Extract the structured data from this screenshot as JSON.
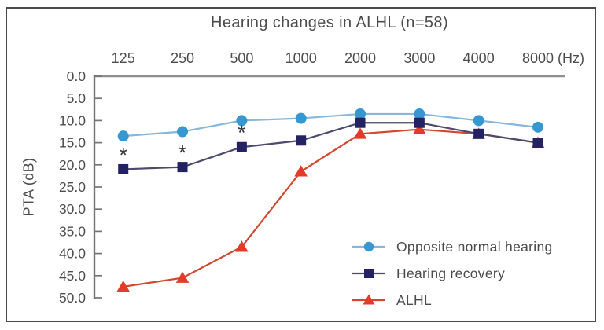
{
  "figure": {
    "title": "Hearing changes in ALHL (n=58)"
  },
  "chart_data": {
    "type": "line",
    "title": "Hearing changes in ALHL (n=58)",
    "ylabel": "PTA (dB)",
    "x_unit_label": "(Hz)",
    "categories": [
      "125",
      "250",
      "500",
      "1000",
      "2000",
      "3000",
      "4000",
      "8000"
    ],
    "y_ticks": [
      "0.0",
      "5.0",
      "10.0",
      "15.0",
      "20.0",
      "25.0",
      "30.0",
      "35.0",
      "40.0",
      "45.0",
      "50.0"
    ],
    "ylim": [
      0,
      50
    ],
    "y_axis_inverted": true,
    "grid": false,
    "legend_position": "inside-bottom-right",
    "series": [
      {
        "name": "Opposite normal hearing",
        "marker": "circle",
        "marker_color": "#3697d1",
        "line_color": "#86b7dc",
        "values": [
          13.5,
          12.5,
          10.0,
          9.5,
          8.5,
          8.5,
          10.0,
          11.5
        ]
      },
      {
        "name": "Hearing recovery",
        "marker": "square",
        "marker_color": "#232262",
        "line_color": "#4c4a6e",
        "values": [
          21.0,
          20.5,
          16.0,
          14.5,
          10.5,
          10.5,
          13.0,
          15.0
        ]
      },
      {
        "name": "ALHL",
        "marker": "triangle",
        "marker_color": "#e23b2a",
        "line_color": "#d4482f",
        "values": [
          47.5,
          45.5,
          38.5,
          21.5,
          13.0,
          12.0,
          13.0,
          15.0
        ]
      }
    ],
    "significance_markers": {
      "symbol": "*",
      "series": "Hearing recovery",
      "categories": [
        "125",
        "250",
        "500"
      ]
    }
  },
  "colors": {
    "frame_border": "#4a4a4a",
    "top_axis": "#8f8f8f",
    "y_axis": "#757575",
    "text": "#4c4c4c",
    "asterisk": "#3a3a3a"
  }
}
